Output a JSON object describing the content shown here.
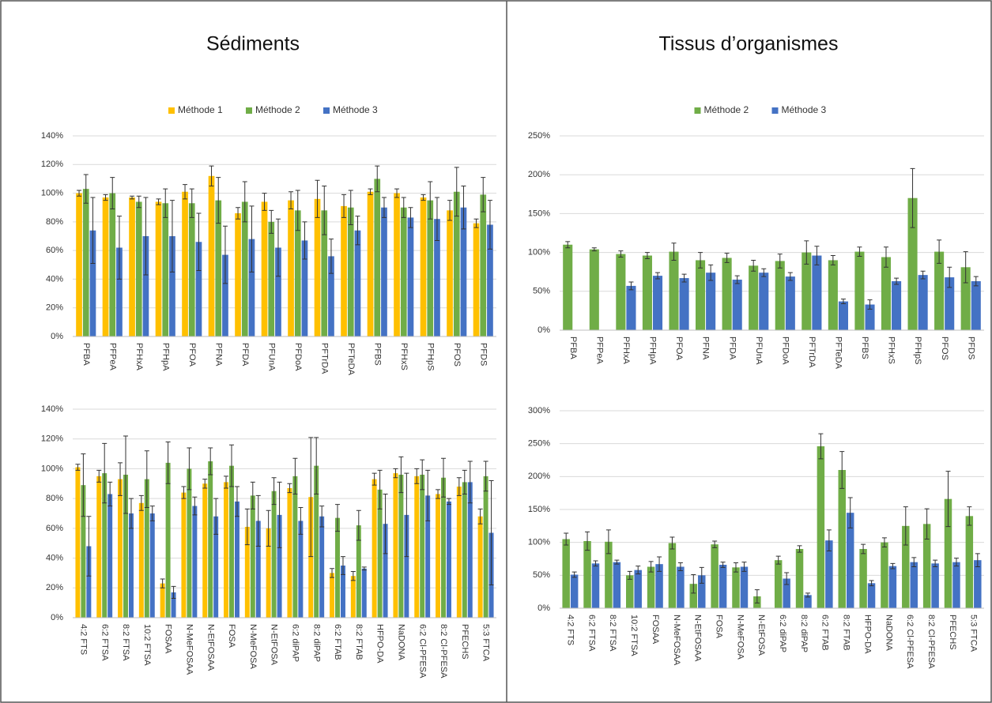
{
  "chart_data": [
    {
      "type": "bar",
      "title": "Sédiments",
      "categories": [
        "PFBA",
        "PFPeA",
        "PFHxA",
        "PFHpA",
        "PFOA",
        "PFNA",
        "PFDA",
        "PFUnA",
        "PFDoA",
        "PFTrDA",
        "PFTeDA",
        "PFBS",
        "PFHxS",
        "PFHpS",
        "PFOS",
        "PFDS"
      ],
      "series": [
        {
          "name": "Méthode 1",
          "color": "#ffc000",
          "values": [
            100,
            97,
            97,
            94,
            101,
            112,
            86,
            94,
            95,
            96,
            91,
            101,
            100,
            97,
            88,
            79
          ],
          "errors": [
            2,
            2,
            1,
            2,
            5,
            7,
            4,
            6,
            6,
            13,
            8,
            2,
            3,
            2,
            7,
            3
          ]
        },
        {
          "name": "Méthode 2",
          "color": "#70ad47",
          "values": [
            103,
            100,
            94,
            93,
            93,
            95,
            94,
            80,
            88,
            88,
            90,
            110,
            90,
            95,
            101,
            99
          ],
          "errors": [
            10,
            11,
            4,
            10,
            10,
            16,
            14,
            8,
            14,
            17,
            12,
            9,
            7,
            13,
            17,
            12
          ]
        },
        {
          "name": "Méthode 3",
          "color": "#4472c4",
          "values": [
            74,
            62,
            70,
            70,
            66,
            57,
            68,
            62,
            67,
            56,
            74,
            90,
            83,
            82,
            90,
            78
          ],
          "errors": [
            23,
            22,
            27,
            25,
            20,
            20,
            23,
            20,
            13,
            12,
            10,
            7,
            7,
            15,
            15,
            17
          ]
        }
      ],
      "ylim": [
        0,
        140
      ],
      "yticks": [
        {
          "value": 0,
          "label": "0%"
        },
        {
          "value": 20,
          "label": "20%"
        },
        {
          "value": 40,
          "label": "40%"
        },
        {
          "value": 60,
          "label": "60%"
        },
        {
          "value": 80,
          "label": "80%"
        },
        {
          "value": 100,
          "label": "100%"
        },
        {
          "value": 120,
          "label": "120%"
        },
        {
          "value": 140,
          "label": "140%"
        }
      ],
      "grid": true
    },
    {
      "type": "bar",
      "title": "Tissus d’organismes",
      "categories": [
        "PFBA",
        "PFPeA",
        "PFHxA",
        "PFHpA",
        "PFOA",
        "PFNA",
        "PFDA",
        "PFUnA",
        "PFDoA",
        "PFTrDA",
        "PFTeDA",
        "PFBS",
        "PFHxS",
        "PFHpS",
        "PFOS",
        "PFDS"
      ],
      "series": [
        {
          "name": "Méthode 2",
          "color": "#70ad47",
          "values": [
            110,
            104,
            98,
            96,
            101,
            90,
            93,
            83,
            89,
            100,
            90,
            101,
            94,
            170,
            101,
            81
          ],
          "errors": [
            4,
            2,
            4,
            4,
            11,
            10,
            6,
            7,
            9,
            15,
            6,
            6,
            13,
            38,
            15,
            20
          ]
        },
        {
          "name": "Méthode 3",
          "color": "#4472c4",
          "values": [
            null,
            null,
            57,
            70,
            67,
            74,
            65,
            74,
            69,
            96,
            37,
            33,
            63,
            71,
            68,
            63
          ],
          "errors": [
            null,
            null,
            5,
            4,
            5,
            10,
            5,
            5,
            5,
            12,
            3,
            6,
            4,
            5,
            13,
            6
          ]
        }
      ],
      "ylim": [
        0,
        250
      ],
      "yticks": [
        {
          "value": 0,
          "label": "0%"
        },
        {
          "value": 50,
          "label": "50%"
        },
        {
          "value": 100,
          "label": "100%"
        },
        {
          "value": 150,
          "label": "150%"
        },
        {
          "value": 200,
          "label": "200%"
        },
        {
          "value": 250,
          "label": "250%"
        }
      ],
      "grid": true
    },
    {
      "type": "bar",
      "categories": [
        "4:2 FTS",
        "6:2 FTSA",
        "8:2 FTSA",
        "10:2 FTSA",
        "FOSAA",
        "N-MeFOSAA",
        "N-EtFOSAA",
        "FOSA",
        "N-MeFOSA",
        "N-EtFOSA",
        "6:2 diPAP",
        "8:2 diPAP",
        "6:2 FTAB",
        "8:2 FTAB",
        "HFPO-DA",
        "NaDONA",
        "6:2 Cl-PFESA",
        "8:2 Cl-PFESA",
        "PFECHS",
        "5:3 FTCA"
      ],
      "series": [
        {
          "color": "#ffc000",
          "values": [
            101,
            95,
            93,
            77,
            23,
            84,
            90,
            91,
            61,
            60,
            87,
            81,
            30,
            28,
            93,
            97,
            95,
            83,
            88,
            68
          ],
          "errors": [
            2,
            4,
            11,
            5,
            3,
            4,
            3,
            4,
            12,
            12,
            3,
            40,
            3,
            3,
            4,
            3,
            5,
            3,
            6,
            5
          ]
        },
        {
          "color": "#70ad47",
          "values": [
            89,
            97,
            96,
            93,
            104,
            100,
            105,
            102,
            82,
            85,
            95,
            102,
            67,
            62,
            86,
            96,
            96,
            94,
            91,
            95
          ],
          "errors": [
            21,
            20,
            26,
            19,
            14,
            14,
            9,
            14,
            9,
            9,
            12,
            19,
            9,
            10,
            13,
            12,
            10,
            13,
            8,
            10
          ]
        },
        {
          "color": "#4472c4",
          "values": [
            48,
            83,
            70,
            70,
            17,
            75,
            68,
            78,
            65,
            69,
            65,
            68,
            35,
            33,
            63,
            69,
            82,
            78,
            91,
            57
          ],
          "errors": [
            20,
            8,
            10,
            5,
            4,
            6,
            12,
            10,
            17,
            22,
            9,
            7,
            6,
            1,
            20,
            28,
            17,
            2,
            14,
            35
          ]
        }
      ],
      "ylim": [
        0,
        140
      ],
      "yticks": [
        {
          "value": 0,
          "label": "0%"
        },
        {
          "value": 20,
          "label": "20%"
        },
        {
          "value": 40,
          "label": "40%"
        },
        {
          "value": 60,
          "label": "60%"
        },
        {
          "value": 80,
          "label": "80%"
        },
        {
          "value": 100,
          "label": "100%"
        },
        {
          "value": 120,
          "label": "120%"
        },
        {
          "value": 140,
          "label": "140%"
        }
      ],
      "grid": true
    },
    {
      "type": "bar",
      "categories": [
        "4:2 FTS",
        "6:2 FTSA",
        "8:2 FTSA",
        "10:2 FTSA",
        "FOSAA",
        "N-MeFOSAA",
        "N-EtFOSAA",
        "FOSA",
        "N-MeFOSA",
        "N-EtFOSA",
        "6:2 diPAP",
        "8:2 diPAP",
        "6:2 FTAB",
        "8:2 FTAB",
        "HFPO-DA",
        "NaDONA",
        "6:2 Cl-PFESA",
        "8:2 Cl-PFESA",
        "PFECHS",
        "5:3 FTCA"
      ],
      "series": [
        {
          "color": "#70ad47",
          "values": [
            105,
            102,
            101,
            50,
            63,
            99,
            37,
            97,
            62,
            18,
            73,
            90,
            246,
            210,
            90,
            100,
            125,
            128,
            166,
            140
          ],
          "errors": [
            9,
            14,
            18,
            6,
            8,
            9,
            14,
            5,
            7,
            10,
            6,
            5,
            19,
            28,
            7,
            7,
            29,
            23,
            42,
            14
          ]
        },
        {
          "color": "#4472c4",
          "values": [
            51,
            68,
            70,
            58,
            67,
            63,
            50,
            66,
            63,
            null,
            45,
            20,
            103,
            145,
            38,
            64,
            70,
            68,
            70,
            73
          ],
          "errors": [
            4,
            4,
            3,
            6,
            11,
            6,
            12,
            4,
            7,
            null,
            9,
            3,
            16,
            23,
            4,
            4,
            7,
            5,
            6,
            10
          ]
        }
      ],
      "ylim": [
        0,
        300
      ],
      "yticks": [
        {
          "value": 0,
          "label": "0%"
        },
        {
          "value": 50,
          "label": "50%"
        },
        {
          "value": 100,
          "label": "100%"
        },
        {
          "value": 150,
          "label": "150%"
        },
        {
          "value": 200,
          "label": "200%"
        },
        {
          "value": 250,
          "label": "250%"
        },
        {
          "value": 300,
          "label": "300%"
        }
      ],
      "grid": true
    }
  ]
}
